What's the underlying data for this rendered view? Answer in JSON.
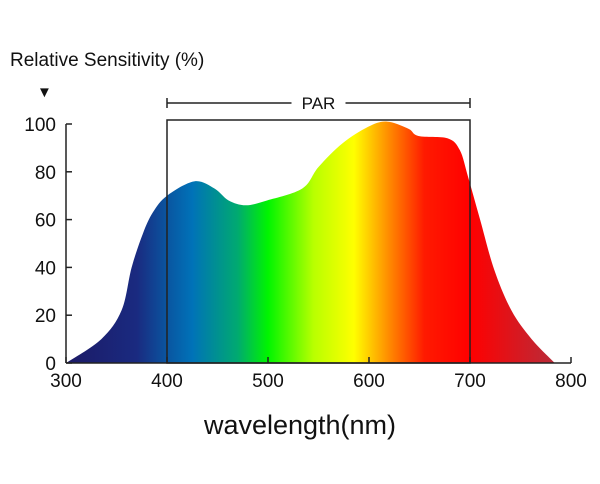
{
  "chart_data": {
    "type": "area",
    "title": "",
    "ylabel": "Relative Sensitivity (%)",
    "xlabel": "wavelength(nm)",
    "xlim": [
      300,
      800
    ],
    "ylim": [
      0,
      100
    ],
    "xticks": [
      300,
      400,
      500,
      600,
      700,
      800
    ],
    "yticks": [
      0,
      20,
      40,
      60,
      80,
      100
    ],
    "grid": false,
    "annotation": {
      "label": "PAR",
      "range": [
        400,
        700
      ]
    },
    "fill_gradient": [
      {
        "nm": 300,
        "color": "#1c1a66"
      },
      {
        "nm": 370,
        "color": "#1a2a80"
      },
      {
        "nm": 400,
        "color": "#0a55a0"
      },
      {
        "nm": 425,
        "color": "#0072b8"
      },
      {
        "nm": 470,
        "color": "#00aa70"
      },
      {
        "nm": 500,
        "color": "#00f500"
      },
      {
        "nm": 545,
        "color": "#b8ff00"
      },
      {
        "nm": 585,
        "color": "#ffff00"
      },
      {
        "nm": 620,
        "color": "#ff8a00"
      },
      {
        "nm": 655,
        "color": "#ff1a00"
      },
      {
        "nm": 700,
        "color": "#ff0000"
      },
      {
        "nm": 785,
        "color": "#b82c3a"
      }
    ],
    "x": [
      300,
      335,
      355,
      365,
      376,
      386,
      400,
      427,
      447,
      461,
      478,
      499,
      534,
      550,
      574,
      600,
      618,
      639,
      649,
      678,
      690,
      698,
      710,
      724,
      741,
      761,
      784
    ],
    "y": [
      0,
      10,
      22,
      40,
      54,
      63,
      70,
      76,
      73,
      68,
      66,
      68,
      73,
      82,
      92,
      99,
      101,
      98,
      95,
      94,
      89,
      78,
      60,
      39,
      22,
      10,
      0
    ]
  }
}
